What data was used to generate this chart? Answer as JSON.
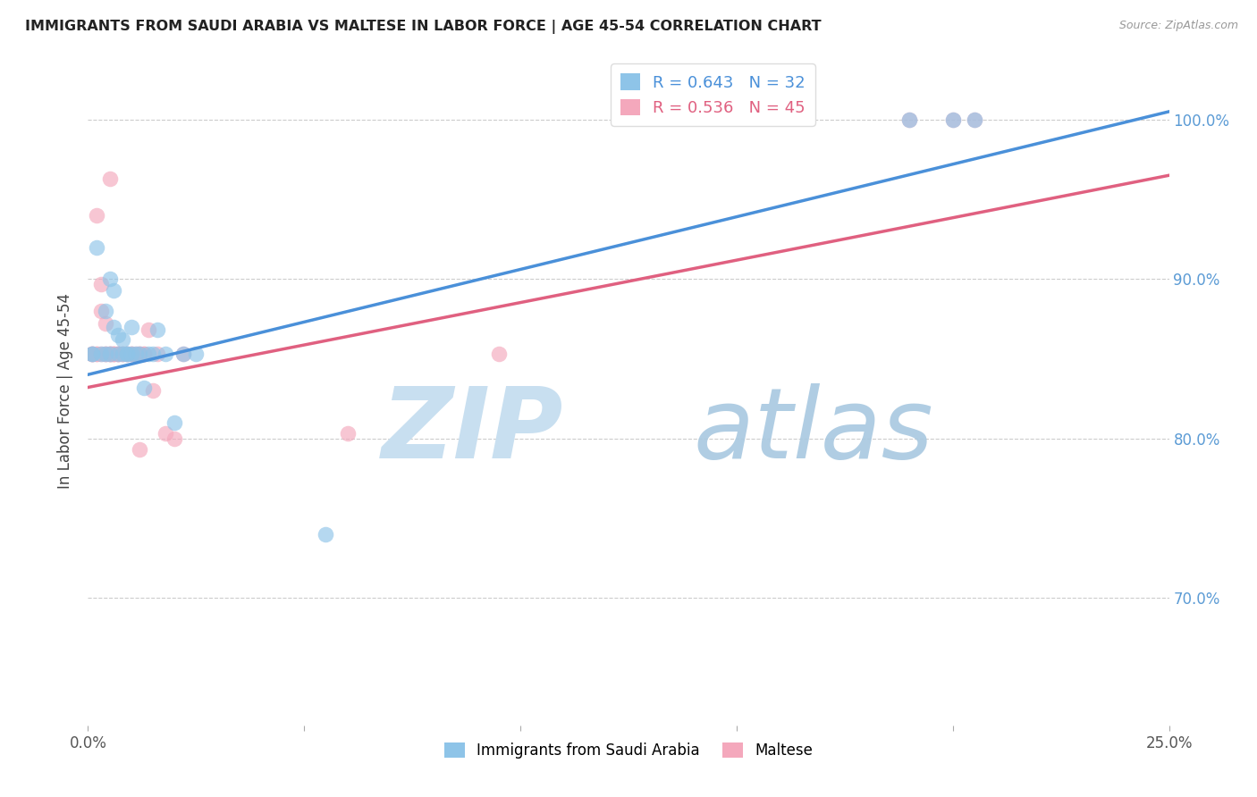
{
  "title": "IMMIGRANTS FROM SAUDI ARABIA VS MALTESE IN LABOR FORCE | AGE 45-54 CORRELATION CHART",
  "source": "Source: ZipAtlas.com",
  "ylabel": "In Labor Force | Age 45-54",
  "xlim": [
    0.0,
    0.25
  ],
  "ylim": [
    0.62,
    1.04
  ],
  "xticks": [
    0.0,
    0.05,
    0.1,
    0.15,
    0.2,
    0.25
  ],
  "xticklabels": [
    "0.0%",
    "",
    "",
    "",
    "",
    "25.0%"
  ],
  "yticks": [
    0.7,
    0.8,
    0.9,
    1.0
  ],
  "yticklabels": [
    "70.0%",
    "80.0%",
    "90.0%",
    "100.0%"
  ],
  "legend_label1": "R = 0.643   N = 32",
  "legend_label2": "R = 0.536   N = 45",
  "color_blue": "#8ec4e8",
  "color_pink": "#f4a8bc",
  "line_color_blue": "#4a90d9",
  "line_color_pink": "#e06080",
  "grid_color": "#cccccc",
  "background_color": "#ffffff",
  "tick_color_right": "#5b9bd5",
  "blue_pts_x": [
    0.001,
    0.001,
    0.002,
    0.003,
    0.004,
    0.004,
    0.005,
    0.005,
    0.006,
    0.006,
    0.007,
    0.007,
    0.008,
    0.008,
    0.009,
    0.009,
    0.01,
    0.01,
    0.011,
    0.012,
    0.013,
    0.014,
    0.015,
    0.016,
    0.018,
    0.02,
    0.022,
    0.025,
    0.055,
    0.19,
    0.2,
    0.205
  ],
  "blue_pts_y": [
    0.853,
    0.853,
    0.92,
    0.853,
    0.88,
    0.853,
    0.9,
    0.853,
    0.893,
    0.87,
    0.865,
    0.853,
    0.862,
    0.853,
    0.853,
    0.853,
    0.87,
    0.853,
    0.853,
    0.853,
    0.832,
    0.853,
    0.853,
    0.868,
    0.853,
    0.81,
    0.853,
    0.853,
    0.74,
    1.0,
    1.0,
    1.0
  ],
  "pink_pts_x": [
    0.001,
    0.001,
    0.001,
    0.002,
    0.002,
    0.003,
    0.003,
    0.003,
    0.004,
    0.004,
    0.004,
    0.005,
    0.005,
    0.005,
    0.006,
    0.006,
    0.006,
    0.007,
    0.007,
    0.007,
    0.008,
    0.008,
    0.009,
    0.009,
    0.01,
    0.01,
    0.011,
    0.012,
    0.012,
    0.013,
    0.013,
    0.014,
    0.015,
    0.016,
    0.018,
    0.02,
    0.022,
    0.06,
    0.095,
    0.19,
    0.2,
    0.205,
    0.002,
    0.005,
    0.012
  ],
  "pink_pts_y": [
    0.853,
    0.853,
    0.853,
    0.853,
    0.853,
    0.897,
    0.88,
    0.853,
    0.872,
    0.853,
    0.853,
    0.853,
    0.853,
    0.853,
    0.853,
    0.853,
    0.853,
    0.853,
    0.853,
    0.853,
    0.853,
    0.853,
    0.853,
    0.853,
    0.853,
    0.853,
    0.853,
    0.853,
    0.853,
    0.853,
    0.853,
    0.868,
    0.83,
    0.853,
    0.803,
    0.8,
    0.853,
    0.803,
    0.853,
    1.0,
    1.0,
    1.0,
    0.94,
    0.963,
    0.793
  ],
  "line_blue_x0": 0.0,
  "line_blue_y0": 0.84,
  "line_blue_x1": 0.25,
  "line_blue_y1": 1.005,
  "line_pink_x0": 0.0,
  "line_pink_y0": 0.832,
  "line_pink_x1": 0.25,
  "line_pink_y1": 0.965
}
